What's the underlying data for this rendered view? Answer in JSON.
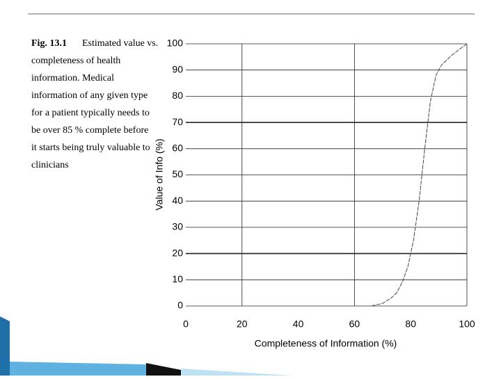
{
  "chart_data": {
    "type": "line",
    "caption_label": "Fig. 13.1",
    "caption_lines": [
      "Estimated value vs.",
      "completeness of health",
      "information. Medical",
      "information of any given type",
      "for a patient typically needs to",
      "be over 85 % complete before",
      "it starts being truly valuable to",
      "clinicians"
    ],
    "x_label": "Completeness of Information (%)",
    "y_label": "Value of Info (%)",
    "xlim": [
      0,
      100
    ],
    "ylim": [
      0,
      100
    ],
    "xticks": [
      0,
      20,
      40,
      60,
      80,
      100
    ],
    "yticks": [
      0,
      10,
      20,
      30,
      40,
      50,
      60,
      70,
      80,
      90,
      100
    ],
    "grid": true,
    "series": [
      {
        "color": "#444444",
        "x": [
          66,
          70,
          73,
          75,
          77,
          79,
          81,
          83,
          85,
          87,
          89,
          91,
          95,
          100
        ],
        "values": [
          0,
          1,
          3,
          5,
          9,
          15,
          25,
          40,
          60,
          78,
          88,
          92,
          96,
          100
        ]
      }
    ]
  }
}
